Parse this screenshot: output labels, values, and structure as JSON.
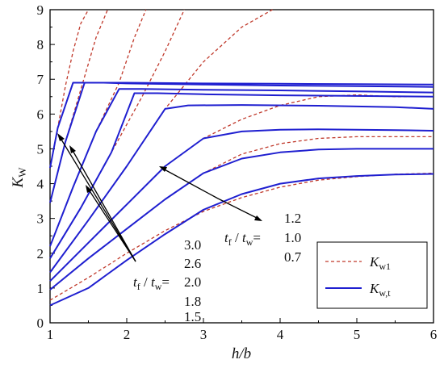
{
  "chart_data": {
    "type": "line",
    "xlabel_main": "h/b",
    "ylabel": {
      "main": "K",
      "sub": "W"
    },
    "xlim": [
      1,
      6
    ],
    "ylim": [
      0,
      9
    ],
    "xticks": [
      "1",
      "2",
      "3",
      "4",
      "5",
      "6"
    ],
    "yticks": [
      "0",
      "1",
      "2",
      "3",
      "4",
      "5",
      "6",
      "7",
      "8",
      "9"
    ],
    "grid": false,
    "legend_position": "bottom-right",
    "legend": [
      {
        "main": "K",
        "sub": "w1",
        "style": "dashed",
        "color": "#c0392b"
      },
      {
        "main": "K",
        "sub": "w,t",
        "style": "solid",
        "color": "#1f1fd0"
      }
    ],
    "colors": {
      "dashed": "#c0392b",
      "solid": "#1f1fd0"
    },
    "annotations": {
      "group_left": {
        "prefix_t": "t",
        "prefix_f": "f",
        "slash": " / ",
        "prefix_tw": "t",
        "prefix_w": "w",
        "eq": "=",
        "values": [
          "3.0",
          "2.6",
          "2.0",
          "1.8",
          "1.5"
        ]
      },
      "group_right": {
        "prefix_t": "t",
        "prefix_f": "f",
        "slash": " / ",
        "prefix_tw": "t",
        "prefix_w": "w",
        "eq": "=",
        "values": [
          "1.2",
          "1.0",
          "0.7"
        ]
      }
    },
    "series": [
      {
        "tf_tw": "3.0",
        "style": "solid",
        "x": [
          1.0,
          1.1,
          1.3,
          1.5,
          2,
          3,
          4,
          5,
          6
        ],
        "y": [
          4.45,
          5.6,
          6.9,
          6.9,
          6.9,
          6.88,
          6.87,
          6.86,
          6.85
        ]
      },
      {
        "tf_tw": "2.6",
        "style": "solid",
        "x": [
          1.0,
          1.2,
          1.45,
          1.7,
          2,
          3,
          4,
          5,
          6
        ],
        "y": [
          3.45,
          5.2,
          6.9,
          6.9,
          6.88,
          6.85,
          6.82,
          6.8,
          6.78
        ]
      },
      {
        "tf_tw": "2.0",
        "style": "solid",
        "x": [
          1.0,
          1.3,
          1.6,
          1.9,
          2.2,
          3,
          4,
          5,
          6
        ],
        "y": [
          2.2,
          3.9,
          5.5,
          6.72,
          6.72,
          6.7,
          6.68,
          6.65,
          6.62
        ]
      },
      {
        "tf_tw": "1.8",
        "style": "solid",
        "x": [
          1.0,
          1.4,
          1.8,
          2.1,
          2.4,
          3,
          4,
          5,
          6
        ],
        "y": [
          1.85,
          3.3,
          4.9,
          6.6,
          6.6,
          6.57,
          6.54,
          6.52,
          6.5
        ]
      },
      {
        "tf_tw": "1.5",
        "style": "solid",
        "x": [
          1.0,
          1.5,
          2.0,
          2.5,
          2.8,
          3.5,
          4.5,
          5.5,
          6
        ],
        "y": [
          1.45,
          2.95,
          4.5,
          6.15,
          6.25,
          6.26,
          6.24,
          6.2,
          6.15
        ]
      },
      {
        "tf_tw": "1.2",
        "style": "solid",
        "x": [
          1.0,
          1.5,
          2.0,
          2.5,
          3.0,
          3.5,
          4.0,
          4.5,
          5.0,
          5.5,
          6
        ],
        "y": [
          1.2,
          2.3,
          3.4,
          4.5,
          5.3,
          5.5,
          5.55,
          5.56,
          5.55,
          5.54,
          5.52
        ]
      },
      {
        "tf_tw": "1.0",
        "style": "solid",
        "x": [
          1.0,
          1.5,
          2.0,
          2.5,
          3.0,
          3.5,
          4.0,
          4.5,
          5.0,
          5.5,
          6
        ],
        "y": [
          0.95,
          1.85,
          2.7,
          3.55,
          4.3,
          4.72,
          4.9,
          4.98,
          5.0,
          5.0,
          5.0
        ]
      },
      {
        "tf_tw": "0.7",
        "style": "solid",
        "x": [
          1.0,
          1.5,
          2.0,
          2.5,
          3.0,
          3.5,
          4.0,
          4.5,
          5.0,
          5.5,
          6
        ],
        "y": [
          0.5,
          1.0,
          1.8,
          2.55,
          3.25,
          3.7,
          4.0,
          4.15,
          4.22,
          4.26,
          4.28
        ]
      },
      {
        "tf_tw": "3.0",
        "style": "dashed",
        "x": [
          1.0,
          1.1,
          1.2,
          1.3,
          1.4,
          1.5
        ],
        "y": [
          4.45,
          5.6,
          6.8,
          7.8,
          8.6,
          9.0
        ]
      },
      {
        "tf_tw": "2.6",
        "style": "dashed",
        "x": [
          1.0,
          1.2,
          1.4,
          1.6,
          1.75
        ],
        "y": [
          3.45,
          5.2,
          6.7,
          8.2,
          9.0
        ]
      },
      {
        "tf_tw": "2.0",
        "style": "dashed",
        "x": [
          1.0,
          1.3,
          1.6,
          1.9,
          2.1,
          2.25
        ],
        "y": [
          2.2,
          3.9,
          5.5,
          6.9,
          8.2,
          9.0
        ]
      },
      {
        "tf_tw": "1.8",
        "style": "dashed",
        "x": [
          1.0,
          1.4,
          1.8,
          2.2,
          2.5,
          2.75
        ],
        "y": [
          1.85,
          3.3,
          4.9,
          6.5,
          7.8,
          9.0
        ]
      },
      {
        "tf_tw": "1.5",
        "style": "dashed",
        "x": [
          1.0,
          1.5,
          2.0,
          2.5,
          3.0,
          3.5,
          3.9
        ],
        "y": [
          1.45,
          2.95,
          4.5,
          6.15,
          7.5,
          8.5,
          9.0
        ]
      },
      {
        "tf_tw": "1.2",
        "style": "dashed",
        "x": [
          1.0,
          1.5,
          2.0,
          2.5,
          3.0,
          3.5,
          4.0,
          4.5,
          5.0,
          5.5,
          6
        ],
        "y": [
          1.2,
          2.3,
          3.4,
          4.5,
          5.3,
          5.85,
          6.25,
          6.5,
          6.55,
          6.5,
          6.5
        ]
      },
      {
        "tf_tw": "1.0",
        "style": "dashed",
        "x": [
          1.0,
          1.5,
          2.0,
          2.5,
          3.0,
          3.5,
          4.0,
          4.5,
          5.0,
          5.5,
          6
        ],
        "y": [
          0.95,
          1.85,
          2.7,
          3.55,
          4.3,
          4.85,
          5.15,
          5.3,
          5.35,
          5.35,
          5.35
        ]
      },
      {
        "tf_tw": "0.7",
        "style": "dashed",
        "x": [
          1.0,
          1.5,
          2.0,
          2.5,
          3.0,
          3.5,
          4.0,
          4.5,
          5.0,
          5.5,
          6
        ],
        "y": [
          0.65,
          1.3,
          2.0,
          2.65,
          3.2,
          3.6,
          3.9,
          4.1,
          4.2,
          4.27,
          4.3
        ]
      }
    ]
  }
}
